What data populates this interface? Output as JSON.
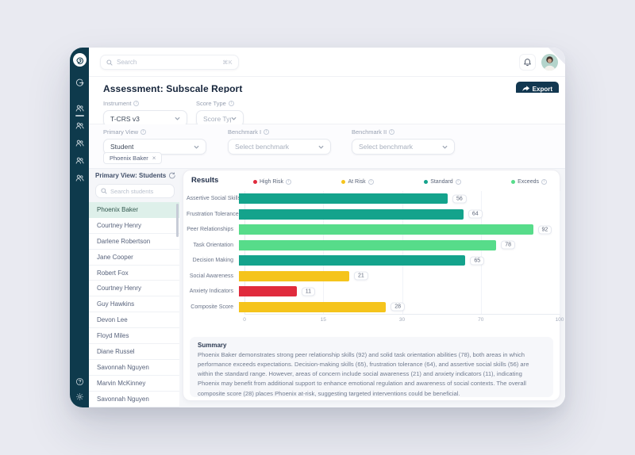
{
  "colors": {
    "page_bg": "#e9eaf1",
    "sidebar_bg": "#0e3a4c",
    "accent_dark": "#123750",
    "selected_row_bg": "#def0ea"
  },
  "sidebar": {
    "logo_icon": "brand-spiral-logo",
    "collapse_icon": "collapse-sidebar-icon",
    "nav": [
      {
        "icon": "users-icon",
        "active": true
      },
      {
        "icon": "users-icon",
        "active": false
      },
      {
        "icon": "users-icon",
        "active": false
      },
      {
        "icon": "users-icon",
        "active": false
      },
      {
        "icon": "users-icon",
        "active": false
      }
    ],
    "bottom": [
      {
        "icon": "help-icon"
      },
      {
        "icon": "gear-icon"
      }
    ]
  },
  "topbar": {
    "search_placeholder": "Search",
    "search_shortcut": "⌘K"
  },
  "header": {
    "title": "Assessment: Subscale Report",
    "export_label": "Export"
  },
  "filters": {
    "instrument": {
      "label": "Instrument",
      "value": "T-CRS v3"
    },
    "score_type": {
      "label": "Score Type",
      "placeholder": "Score Type"
    },
    "primary_view": {
      "label": "Primary View",
      "value": "Student"
    },
    "benchmark_1": {
      "label": "Benchmark I",
      "placeholder": "Select benchmark"
    },
    "benchmark_2": {
      "label": "Benchmark II",
      "placeholder": "Select benchmark"
    },
    "selected_student_chip": {
      "label": "Phoenix Baker",
      "remove": "×"
    }
  },
  "students_panel": {
    "title": "Primary View: Students",
    "search_placeholder": "Search students",
    "selected_index": 0,
    "students": [
      "Phoenix Baker",
      "Courtney Henry",
      "Darlene Robertson",
      "Jane Cooper",
      "Robert Fox",
      "Courtney Henry",
      "Guy Hawkins",
      "Devon Lee",
      "Floyd Miles",
      "Diane Russel",
      "Savonnah Nguyen",
      "Marvin McKinney",
      "Savonnah Nguyen"
    ]
  },
  "results": {
    "title": "Results"
  },
  "chart_data": {
    "type": "bar",
    "orientation": "horizontal",
    "title": "Results",
    "categories": [
      "Assertive Social Skills",
      "Frustration Tolerance",
      "Peer Relationships",
      "Task Orientation",
      "Decision Making",
      "Social Awareness",
      "Anxiety Indicators",
      "Composite Score"
    ],
    "values": [
      56,
      64,
      92,
      78,
      65,
      21,
      11,
      28
    ],
    "bands": [
      "standard",
      "standard",
      "exceeds",
      "exceeds",
      "standard",
      "at_risk",
      "high_risk",
      "at_risk"
    ],
    "band_colors": {
      "high_risk": "#e02b3d",
      "at_risk": "#f5c41c",
      "standard": "#14a38c",
      "exceeds": "#57dc8a"
    },
    "legend": [
      {
        "label": "High Risk",
        "band": "high_risk"
      },
      {
        "label": "At Risk",
        "band": "at_risk"
      },
      {
        "label": "Standard",
        "band": "standard"
      },
      {
        "label": "Exceeds",
        "band": "exceeds"
      }
    ],
    "legend_position": "top",
    "x_ticks": [
      0,
      15,
      30,
      70,
      100
    ],
    "xlim": [
      0,
      100
    ],
    "axis_scale": "risk-band scale: segments 0-15, 15-30, 30-70, 70-100 each span 25% of axis width",
    "grid": true
  },
  "summary": {
    "title": "Summary",
    "text": "Phoenix Baker demonstrates strong peer relationship skills (92) and solid task orientation abilities (78), both areas in which performance exceeds expectations. Decision-making skills (65), frustration tolerance (64), and assertive social skills (56) are within the standard range. However, areas of concern include social awareness (21) and anxiety indicators (11), indicating Phoenix may benefit from additional support to enhance emotional regulation and awareness of social contexts. The overall composite score (28) places Phoenix at-risk, suggesting targeted interventions could be beneficial."
  }
}
